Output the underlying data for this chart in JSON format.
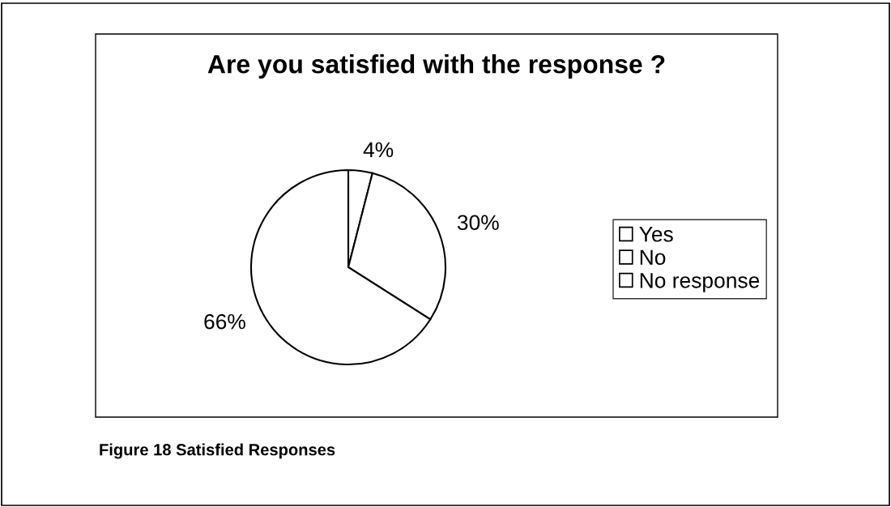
{
  "chart_data": {
    "type": "pie",
    "title": "Are you satisfied with the response ?",
    "categories": [
      "Yes",
      "No",
      "No response"
    ],
    "values": [
      4,
      30,
      66
    ],
    "colors": [
      "#ffffff",
      "#ffffff",
      "#ffffff"
    ],
    "value_labels": [
      "4%",
      "30%",
      "66%"
    ],
    "legend": "right",
    "annotations": [
      "Figure 18 Satisfied Responses"
    ]
  }
}
